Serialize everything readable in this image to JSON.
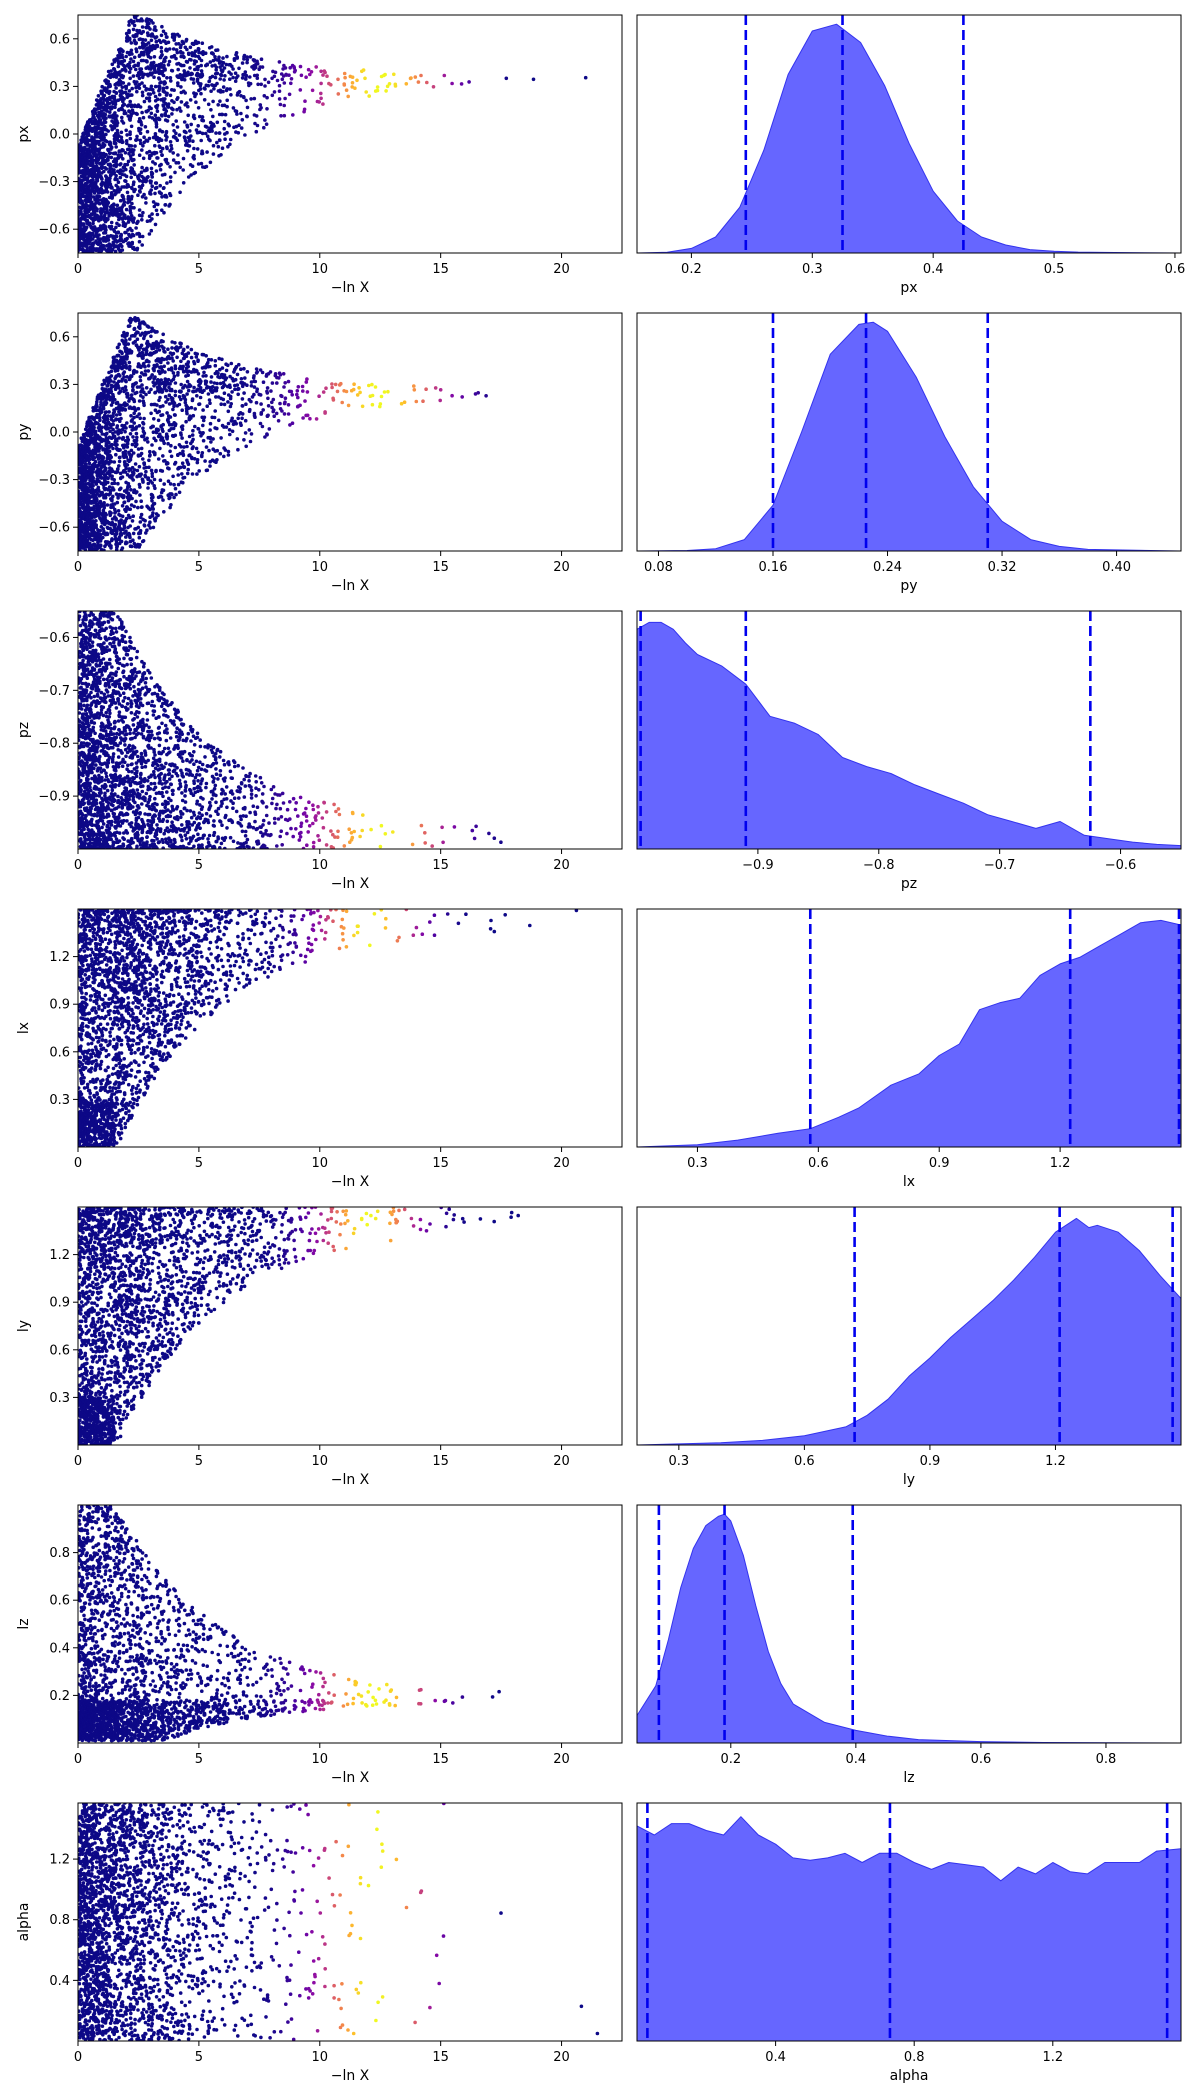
{
  "figure": {
    "rows": [
      {
        "param": "px",
        "trace": {
          "ylabel": "px",
          "xlabel": "−ln X",
          "xlim": [
            0,
            22.5
          ],
          "ylim": [
            -0.75,
            0.75
          ],
          "xticks": [
            0,
            5,
            10,
            15,
            20
          ],
          "yticks": [
            -0.6,
            -0.3,
            0.0,
            0.3,
            0.6
          ],
          "yticklabels": [
            "−0.6",
            "−0.3",
            "0.0",
            "0.3",
            "0.6"
          ],
          "converge": 0.35,
          "shape": "funnel",
          "maxx": 22.3,
          "bright": [
            10.5,
            14.5
          ]
        },
        "posterior": {
          "xlabel": "px",
          "xlim": [
            0.155,
            0.605
          ],
          "xticks": [
            0.2,
            0.3,
            0.4,
            0.5,
            0.6
          ],
          "xticklabels": [
            "0.2",
            "0.3",
            "0.4",
            "0.5",
            "0.6"
          ],
          "quantiles": [
            0.245,
            0.325,
            0.425
          ],
          "x": [
            0.155,
            0.18,
            0.2,
            0.22,
            0.24,
            0.26,
            0.28,
            0.3,
            0.32,
            0.34,
            0.36,
            0.38,
            0.4,
            0.42,
            0.44,
            0.46,
            0.48,
            0.5,
            0.52,
            0.55,
            0.605
          ],
          "y": [
            0,
            0.003,
            0.02,
            0.07,
            0.2,
            0.45,
            0.78,
            0.97,
            1.0,
            0.92,
            0.73,
            0.48,
            0.27,
            0.14,
            0.07,
            0.035,
            0.015,
            0.008,
            0.004,
            0.002,
            0
          ]
        }
      },
      {
        "param": "py",
        "trace": {
          "ylabel": "py",
          "xlabel": "−ln X",
          "xlim": [
            0,
            22.5
          ],
          "ylim": [
            -0.75,
            0.75
          ],
          "xticks": [
            0,
            5,
            10,
            15,
            20
          ],
          "yticks": [
            -0.6,
            -0.3,
            0.0,
            0.3,
            0.6
          ],
          "yticklabels": [
            "−0.6",
            "−0.3",
            "0.0",
            "0.3",
            "0.6"
          ],
          "converge": 0.25,
          "shape": "funnel",
          "maxx": 22.3,
          "bright": [
            10.5,
            14.5
          ]
        },
        "posterior": {
          "xlabel": "py",
          "xlim": [
            0.065,
            0.445
          ],
          "xticks": [
            0.08,
            0.16,
            0.24,
            0.32,
            0.4
          ],
          "xticklabels": [
            "0.08",
            "0.16",
            "0.24",
            "0.32",
            "0.40"
          ],
          "quantiles": [
            0.16,
            0.225,
            0.31
          ],
          "x": [
            0.065,
            0.1,
            0.12,
            0.14,
            0.16,
            0.18,
            0.2,
            0.22,
            0.23,
            0.24,
            0.26,
            0.28,
            0.3,
            0.32,
            0.34,
            0.36,
            0.38,
            0.445
          ],
          "y": [
            0,
            0.002,
            0.01,
            0.05,
            0.2,
            0.52,
            0.86,
            0.99,
            1.0,
            0.96,
            0.76,
            0.5,
            0.28,
            0.13,
            0.05,
            0.02,
            0.007,
            0
          ]
        }
      },
      {
        "param": "pz",
        "trace": {
          "ylabel": "pz",
          "xlabel": "−ln X",
          "xlim": [
            0,
            22.5
          ],
          "ylim": [
            -1.0,
            -0.55
          ],
          "xticks": [
            0,
            5,
            10,
            15,
            20
          ],
          "yticks": [
            -0.9,
            -0.8,
            -0.7,
            -0.6
          ],
          "yticklabels": [
            "−0.9",
            "−0.8",
            "−0.7",
            "−0.6"
          ],
          "converge": -1.0,
          "shape": "edge_low",
          "maxx": 21.5,
          "bright": [
            10.5,
            14.5
          ]
        },
        "posterior": {
          "xlabel": "pz",
          "xlim": [
            -1.0,
            -0.55
          ],
          "xticks": [
            -0.9,
            -0.8,
            -0.7,
            -0.6
          ],
          "xticklabels": [
            "−0.9",
            "−0.8",
            "−0.7",
            "−0.6"
          ],
          "quantiles": [
            -0.997,
            -0.91,
            -0.625
          ],
          "x": [
            -1.0,
            -0.99,
            -0.98,
            -0.97,
            -0.96,
            -0.95,
            -0.93,
            -0.91,
            -0.89,
            -0.87,
            -0.85,
            -0.83,
            -0.81,
            -0.79,
            -0.77,
            -0.75,
            -0.73,
            -0.71,
            -0.69,
            -0.67,
            -0.65,
            -0.63,
            -0.61,
            -0.59,
            -0.57,
            -0.55
          ],
          "y": [
            0.96,
            0.99,
            0.99,
            0.96,
            0.9,
            0.85,
            0.8,
            0.72,
            0.58,
            0.55,
            0.5,
            0.4,
            0.36,
            0.33,
            0.28,
            0.24,
            0.2,
            0.15,
            0.12,
            0.09,
            0.12,
            0.06,
            0.045,
            0.03,
            0.02,
            0.015
          ]
        }
      },
      {
        "param": "lx",
        "trace": {
          "ylabel": "lx",
          "xlabel": "−ln X",
          "xlim": [
            0,
            22.5
          ],
          "ylim": [
            0.0,
            1.5
          ],
          "xticks": [
            0,
            5,
            10,
            15,
            20
          ],
          "yticks": [
            0.3,
            0.6,
            0.9,
            1.2
          ],
          "yticklabels": [
            "0.3",
            "0.6",
            "0.9",
            "1.2"
          ],
          "converge": 1.5,
          "shape": "edge_high",
          "maxx": 22.0,
          "bright": [
            10.5,
            13.5
          ]
        },
        "posterior": {
          "xlabel": "lx",
          "xlim": [
            0.15,
            1.5
          ],
          "xticks": [
            0.3,
            0.6,
            0.9,
            1.2
          ],
          "xticklabels": [
            "0.3",
            "0.6",
            "0.9",
            "1.2"
          ],
          "quantiles": [
            0.58,
            1.225,
            1.495
          ],
          "x": [
            0.15,
            0.3,
            0.4,
            0.5,
            0.58,
            0.65,
            0.7,
            0.78,
            0.85,
            0.9,
            0.95,
            1.0,
            1.05,
            1.1,
            1.15,
            1.2,
            1.25,
            1.3,
            1.35,
            1.4,
            1.45,
            1.5
          ],
          "y": [
            0,
            0.01,
            0.03,
            0.06,
            0.08,
            0.13,
            0.17,
            0.27,
            0.32,
            0.4,
            0.45,
            0.6,
            0.63,
            0.65,
            0.75,
            0.8,
            0.83,
            0.88,
            0.93,
            0.98,
            0.99,
            0.97
          ]
        }
      },
      {
        "param": "ly",
        "trace": {
          "ylabel": "ly",
          "xlabel": "−ln X",
          "xlim": [
            0,
            22.5
          ],
          "ylim": [
            0.0,
            1.5
          ],
          "xticks": [
            0,
            5,
            10,
            15,
            20
          ],
          "yticks": [
            0.3,
            0.6,
            0.9,
            1.2
          ],
          "yticklabels": [
            "0.3",
            "0.6",
            "0.9",
            "1.2"
          ],
          "converge": 1.35,
          "shape": "edge_high",
          "maxx": 22.0,
          "bright": [
            10.5,
            13.5
          ]
        },
        "posterior": {
          "xlabel": "ly",
          "xlim": [
            0.2,
            1.5
          ],
          "xticks": [
            0.3,
            0.6,
            0.9,
            1.2
          ],
          "xticklabels": [
            "0.3",
            "0.6",
            "0.9",
            "1.2"
          ],
          "quantiles": [
            0.72,
            1.21,
            1.48
          ],
          "x": [
            0.2,
            0.4,
            0.5,
            0.6,
            0.7,
            0.75,
            0.8,
            0.85,
            0.9,
            0.95,
            1.0,
            1.05,
            1.1,
            1.15,
            1.2,
            1.25,
            1.28,
            1.3,
            1.35,
            1.4,
            1.45,
            1.5
          ],
          "y": [
            0,
            0.01,
            0.02,
            0.04,
            0.08,
            0.13,
            0.2,
            0.3,
            0.38,
            0.47,
            0.55,
            0.63,
            0.72,
            0.82,
            0.93,
            0.99,
            0.95,
            0.96,
            0.93,
            0.85,
            0.74,
            0.64
          ]
        }
      },
      {
        "param": "lz",
        "trace": {
          "ylabel": "lz",
          "xlabel": "−ln X",
          "xlim": [
            0,
            22.5
          ],
          "ylim": [
            0.0,
            1.0
          ],
          "xticks": [
            0,
            5,
            10,
            15,
            20
          ],
          "yticks": [
            0.2,
            0.4,
            0.6,
            0.8
          ],
          "yticklabels": [
            "0.2",
            "0.4",
            "0.6",
            "0.8"
          ],
          "converge": 0.18,
          "shape": "floor",
          "maxx": 20.5,
          "bright": [
            10.5,
            14.0
          ]
        },
        "posterior": {
          "xlabel": "lz",
          "xlim": [
            0.05,
            0.92
          ],
          "xticks": [
            0.2,
            0.4,
            0.6,
            0.8
          ],
          "xticklabels": [
            "0.2",
            "0.4",
            "0.6",
            "0.8"
          ],
          "quantiles": [
            0.085,
            0.19,
            0.395
          ],
          "x": [
            0.05,
            0.08,
            0.1,
            0.12,
            0.14,
            0.16,
            0.18,
            0.19,
            0.2,
            0.22,
            0.24,
            0.26,
            0.28,
            0.3,
            0.35,
            0.4,
            0.45,
            0.5,
            0.6,
            0.7,
            0.92
          ],
          "y": [
            0.12,
            0.25,
            0.45,
            0.68,
            0.85,
            0.95,
            0.99,
            1.0,
            0.97,
            0.82,
            0.6,
            0.4,
            0.26,
            0.17,
            0.09,
            0.055,
            0.03,
            0.015,
            0.006,
            0.002,
            0
          ]
        }
      },
      {
        "param": "alpha",
        "trace": {
          "ylabel": "alpha",
          "xlabel": "−ln X",
          "xlim": [
            0,
            22.5
          ],
          "ylim": [
            0.0,
            1.57
          ],
          "xticks": [
            0,
            5,
            10,
            15,
            20
          ],
          "yticks": [
            0.4,
            0.8,
            1.2
          ],
          "yticklabels": [
            "0.4",
            "0.8",
            "1.2"
          ],
          "converge": null,
          "shape": "uniform",
          "maxx": 21.5,
          "bright": [
            10.5,
            14.0
          ]
        },
        "posterior": {
          "xlabel": "alpha",
          "xlim": [
            0.0,
            1.57
          ],
          "xticks": [
            0.4,
            0.8,
            1.2
          ],
          "xticklabels": [
            "0.4",
            "0.8",
            "1.2"
          ],
          "quantiles": [
            0.03,
            0.73,
            1.53
          ],
          "x": [
            0.0,
            0.05,
            0.1,
            0.15,
            0.2,
            0.25,
            0.3,
            0.35,
            0.4,
            0.45,
            0.5,
            0.55,
            0.6,
            0.65,
            0.7,
            0.75,
            0.8,
            0.85,
            0.9,
            0.95,
            1.0,
            1.05,
            1.1,
            1.15,
            1.2,
            1.25,
            1.3,
            1.35,
            1.4,
            1.45,
            1.5,
            1.57
          ],
          "y": [
            0.94,
            0.9,
            0.95,
            0.95,
            0.92,
            0.9,
            0.98,
            0.9,
            0.86,
            0.8,
            0.79,
            0.8,
            0.82,
            0.78,
            0.82,
            0.82,
            0.78,
            0.75,
            0.78,
            0.77,
            0.76,
            0.7,
            0.76,
            0.73,
            0.78,
            0.74,
            0.73,
            0.78,
            0.78,
            0.78,
            0.83,
            0.84
          ]
        }
      }
    ]
  },
  "chart_data": [
    {
      "type": "scatter",
      "title": "",
      "xlabel": "−ln X",
      "ylabel": "px",
      "xlim": [
        0,
        22.5
      ],
      "ylim": [
        -0.75,
        0.75
      ],
      "note_series": "samples colored by posterior weight (plasma colormap), converging to px ≈ 0.35"
    },
    {
      "type": "area",
      "title": "",
      "xlabel": "px",
      "ylabel": "",
      "quantile_lines": [
        0.245,
        0.325,
        0.425
      ]
    },
    {
      "type": "scatter",
      "title": "",
      "xlabel": "−ln X",
      "ylabel": "py",
      "xlim": [
        0,
        22.5
      ],
      "ylim": [
        -0.75,
        0.75
      ]
    },
    {
      "type": "area",
      "title": "",
      "xlabel": "py",
      "ylabel": "",
      "quantile_lines": [
        0.16,
        0.225,
        0.31
      ]
    },
    {
      "type": "scatter",
      "title": "",
      "xlabel": "−ln X",
      "ylabel": "pz",
      "xlim": [
        0,
        22.5
      ],
      "ylim": [
        -1.0,
        -0.55
      ]
    },
    {
      "type": "area",
      "title": "",
      "xlabel": "pz",
      "ylabel": "",
      "quantile_lines": [
        -0.997,
        -0.91,
        -0.625
      ]
    },
    {
      "type": "scatter",
      "title": "",
      "xlabel": "−ln X",
      "ylabel": "lx",
      "xlim": [
        0,
        22.5
      ],
      "ylim": [
        0.0,
        1.5
      ]
    },
    {
      "type": "area",
      "title": "",
      "xlabel": "lx",
      "ylabel": "",
      "quantile_lines": [
        0.58,
        1.225,
        1.495
      ]
    },
    {
      "type": "scatter",
      "title": "",
      "xlabel": "−ln X",
      "ylabel": "ly",
      "xlim": [
        0,
        22.5
      ],
      "ylim": [
        0.0,
        1.5
      ]
    },
    {
      "type": "area",
      "title": "",
      "xlabel": "ly",
      "ylabel": "",
      "quantile_lines": [
        0.72,
        1.21,
        1.48
      ]
    },
    {
      "type": "scatter",
      "title": "",
      "xlabel": "−ln X",
      "ylabel": "lz",
      "xlim": [
        0,
        22.5
      ],
      "ylim": [
        0.0,
        1.0
      ]
    },
    {
      "type": "area",
      "title": "",
      "xlabel": "lz",
      "ylabel": "",
      "quantile_lines": [
        0.085,
        0.19,
        0.395
      ]
    },
    {
      "type": "scatter",
      "title": "",
      "xlabel": "−ln X",
      "ylabel": "alpha",
      "xlim": [
        0,
        22.5
      ],
      "ylim": [
        0.0,
        1.57
      ]
    },
    {
      "type": "area",
      "title": "",
      "xlabel": "alpha",
      "ylabel": "",
      "quantile_lines": [
        0.03,
        0.73,
        1.53
      ]
    }
  ],
  "colors": {
    "posterior_fill": "#6666ff",
    "posterior_edge": "#3333ee",
    "quantile_line": "#0000ee",
    "trace_low": "#0d0887",
    "trace_high": "#f0f921"
  }
}
